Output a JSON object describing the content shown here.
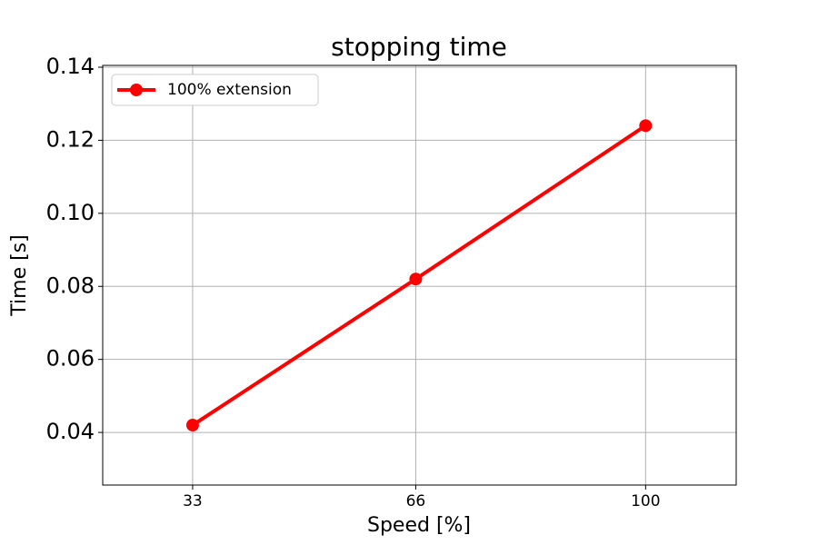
{
  "chart_data": {
    "type": "line",
    "title": "stopping time",
    "xlabel": "Speed [%]",
    "ylabel": "Time [s]",
    "x": [
      33,
      66,
      100
    ],
    "series": [
      {
        "name": "100% extension",
        "color": "#ff0000",
        "values": [
          0.042,
          0.082,
          0.124
        ]
      }
    ],
    "xlim": [
      19.7,
      113.4
    ],
    "xticks": [
      33,
      66,
      100
    ],
    "ylim": [
      0.0256,
      0.1405
    ],
    "yticks": [
      0.04,
      0.06,
      0.08,
      {
        "value": 0.1,
        "label": "0.10"
      },
      0.12,
      0.14
    ],
    "grid": true,
    "legend": "upper left"
  }
}
